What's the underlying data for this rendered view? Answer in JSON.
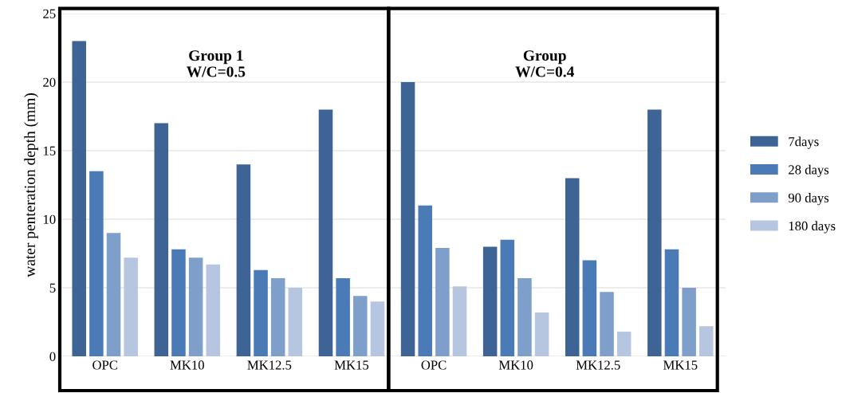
{
  "chart_data": {
    "type": "bar",
    "ylabel": "water penteration depth (mm)",
    "categories": [
      "OPC",
      "MK10",
      "MK12.5",
      "MK15",
      "OPC",
      "MK10",
      "MK12.5",
      "MK15"
    ],
    "series": [
      {
        "name": "7days",
        "color": "#3e6496",
        "values": [
          23,
          17,
          14,
          18,
          20,
          8,
          13,
          18
        ]
      },
      {
        "name": "28 days",
        "color": "#4a7bb7",
        "values": [
          13.5,
          7.8,
          6.3,
          5.7,
          11,
          8.5,
          7,
          7.8
        ]
      },
      {
        "name": "90 days",
        "color": "#7f9fcb",
        "values": [
          9,
          7.2,
          5.7,
          4.4,
          7.9,
          5.7,
          4.7,
          5
        ]
      },
      {
        "name": "180 days",
        "color": "#b7c6e0",
        "values": [
          7.2,
          6.7,
          5,
          4,
          5.1,
          3.2,
          1.8,
          2.2
        ]
      }
    ],
    "annotations": [
      "Group 1\nW/C=0.5",
      "Group\nW/C=0.4"
    ],
    "ylim": [
      0,
      25
    ],
    "yticks": [
      0,
      5,
      10,
      15,
      20,
      25
    ],
    "grid": "y",
    "legend": "right"
  }
}
